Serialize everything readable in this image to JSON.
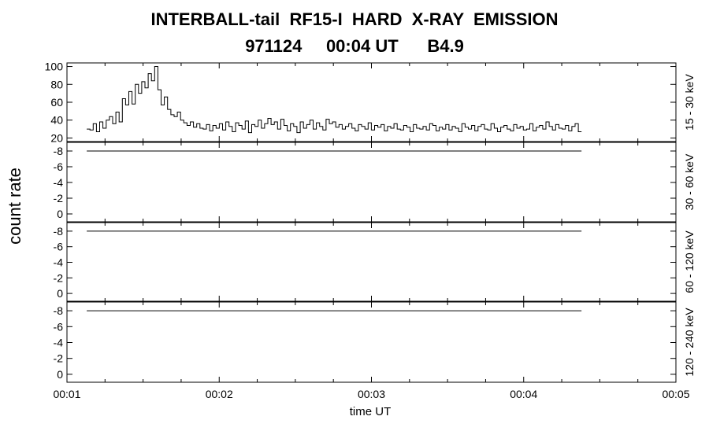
{
  "title_line1": "INTERBALL-tail  RF15-I  HARD  X-RAY  EMISSION",
  "title_line2": "971124     00:04 UT      B4.9",
  "chart_data": {
    "type": "line",
    "xlabel": "time UT",
    "ylabel": "count rate",
    "x_ticks": [
      "00:01",
      "00:02",
      "00:03",
      "00:04",
      "00:05"
    ],
    "x_range_minutes": [
      1,
      5
    ],
    "panels": [
      {
        "name": "15 - 30 keV",
        "yticks": [
          20,
          40,
          60,
          80,
          100
        ],
        "ylim": [
          16,
          104
        ],
        "step": true,
        "x_start": 1.13,
        "x_end": 4.38,
        "values": [
          30,
          29,
          36,
          27,
          38,
          31,
          40,
          44,
          36,
          49,
          38,
          64,
          57,
          72,
          58,
          80,
          70,
          83,
          76,
          92,
          84,
          100,
          74,
          57,
          66,
          52,
          46,
          44,
          49,
          40,
          37,
          34,
          38,
          32,
          36,
          31,
          30,
          35,
          28,
          34,
          31,
          36,
          29,
          38,
          33,
          27,
          37,
          34,
          30,
          39,
          26,
          35,
          33,
          40,
          31,
          36,
          42,
          35,
          38,
          30,
          41,
          34,
          28,
          36,
          33,
          26,
          38,
          31,
          35,
          40,
          30,
          37,
          33,
          29,
          41,
          36,
          38,
          32,
          35,
          30,
          33,
          36,
          31,
          28,
          35,
          33,
          30,
          37,
          29,
          34,
          32,
          35,
          28,
          33,
          31,
          36,
          30,
          29,
          34,
          32,
          27,
          35,
          31,
          30,
          33,
          29,
          36,
          34,
          28,
          32,
          30,
          35,
          29,
          33,
          31,
          27,
          36,
          32,
          30,
          34,
          28,
          33,
          35,
          30,
          29,
          36,
          31,
          27,
          32,
          34,
          30,
          28,
          35,
          31,
          33,
          29,
          30,
          36,
          28,
          32,
          34,
          30,
          38,
          33,
          29,
          35,
          31,
          30,
          34,
          28,
          33,
          36,
          27
        ]
      },
      {
        "name": "30 - 60 keV",
        "yticks": [
          0,
          -2,
          -4,
          -6,
          -8
        ],
        "ylim": [
          1,
          -9.1
        ],
        "values": [
          -8,
          -8
        ],
        "x": [
          1.13,
          4.38
        ]
      },
      {
        "name": "60 - 120 keV",
        "yticks": [
          0,
          -2,
          -4,
          -6,
          -8
        ],
        "ylim": [
          1,
          -9.1
        ],
        "values": [
          -8,
          -8
        ],
        "x": [
          1.13,
          4.38
        ]
      },
      {
        "name": "120 - 240 keV",
        "yticks": [
          0,
          -2,
          -4,
          -6,
          -8
        ],
        "ylim": [
          1,
          -9.1
        ],
        "values": [
          -8,
          -8
        ],
        "x": [
          1.13,
          4.38
        ]
      }
    ]
  }
}
